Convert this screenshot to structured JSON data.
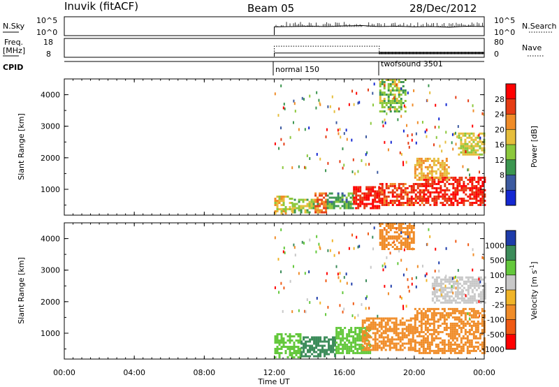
{
  "header": {
    "station": "Inuvik (fitACF)",
    "beam": "Beam 05",
    "date": "28/Dec/2012"
  },
  "noise_panel": {
    "left_label": "N.Sky",
    "left_ticks": [
      "10^5",
      "10^0"
    ],
    "right_ticks": [
      "10^5",
      "10^0"
    ],
    "right_label": "N.Search"
  },
  "freq_panel": {
    "left_label_1": "Freq.",
    "left_label_2": "[MHz]",
    "left_ticks": [
      "18",
      "8"
    ],
    "right_ticks": [
      "80",
      "0"
    ],
    "right_label": "Nave"
  },
  "cpid_panel": {
    "label": "CPID",
    "programs": [
      {
        "name": "normal 150",
        "start_hour": 12,
        "end_hour": 18
      },
      {
        "name": "twofsound 3501",
        "start_hour": 18,
        "end_hour": 24
      }
    ]
  },
  "x_axis": {
    "label": "Time UT",
    "ticks": [
      "00:00",
      "04:00",
      "08:00",
      "12:00",
      "16:00",
      "20:00",
      "00:00"
    ],
    "range_hours": [
      0,
      24
    ]
  },
  "power_panel": {
    "ylabel": "Slant Range [km]",
    "yticks": [
      "1000",
      "2000",
      "3000",
      "4000"
    ],
    "ylim_km": [
      180,
      4500
    ],
    "colorbar_label": "Power [dB]",
    "colorbar_ticks": [
      "4",
      "8",
      "12",
      "16",
      "20",
      "24",
      "28"
    ]
  },
  "velocity_panel": {
    "ylabel": "Slant Range [km]",
    "yticks": [
      "1000",
      "2000",
      "3000",
      "4000"
    ],
    "ylim_km": [
      180,
      4500
    ],
    "colorbar_label": "Velocity [m s",
    "colorbar_label_sup": "-1",
    "colorbar_label_end": "]",
    "colorbar_ticks": [
      "1000",
      "500",
      "100",
      "25",
      "-25",
      "-100",
      "-500",
      "-1000"
    ]
  },
  "chart_data": [
    {
      "type": "line",
      "title": "N.Sky / N.Search",
      "x_hours": [
        12,
        13,
        14,
        15,
        16,
        17,
        18,
        19,
        20,
        21,
        22,
        23,
        24
      ],
      "log10_noise": [
        2.4,
        2.5,
        2.6,
        2.5,
        2.7,
        2.8,
        2.5,
        2.6,
        2.4,
        2.5,
        2.3,
        2.6,
        2.5
      ]
    },
    {
      "type": "line",
      "title": "Freq. / Nave",
      "series": [
        {
          "name": "Freq.",
          "x_hours": [
            12,
            18,
            24
          ],
          "values_mhz": [
            11,
            11,
            11
          ]
        },
        {
          "name": "Nave",
          "x_hours": [
            12,
            18,
            24
          ],
          "values": [
            70,
            16,
            16
          ]
        }
      ]
    },
    {
      "type": "heatmap",
      "title": "Power [dB]",
      "x_range_hours": [
        12,
        24
      ],
      "y_range_km": [
        180,
        4500
      ],
      "colorscale": [
        {
          "value": 4,
          "color": "#1428d2"
        },
        {
          "value": 8,
          "color": "#3c5aa0"
        },
        {
          "value": 12,
          "color": "#3c9650"
        },
        {
          "value": 16,
          "color": "#8cc83c"
        },
        {
          "value": 20,
          "color": "#e6be3c"
        },
        {
          "value": 24,
          "color": "#f08c28"
        },
        {
          "value": 28,
          "color": "#e63c14"
        },
        {
          "value": 32,
          "color": "#ff0000"
        }
      ],
      "regions": [
        {
          "t0": 12.0,
          "t1": 13.0,
          "r0": 250,
          "r1": 800,
          "value": 20
        },
        {
          "t0": 13.0,
          "t1": 14.5,
          "r0": 300,
          "r1": 700,
          "value": 16
        },
        {
          "t0": 14.3,
          "t1": 15.0,
          "r0": 300,
          "r1": 900,
          "value": 26
        },
        {
          "t0": 15.0,
          "t1": 16.5,
          "r0": 400,
          "r1": 900,
          "value": 12
        },
        {
          "t0": 16.5,
          "t1": 18.0,
          "r0": 400,
          "r1": 1100,
          "value": 30
        },
        {
          "t0": 18.0,
          "t1": 20.5,
          "r0": 500,
          "r1": 1200,
          "value": 28
        },
        {
          "t0": 20.5,
          "t1": 24.0,
          "r0": 500,
          "r1": 1400,
          "value": 30
        },
        {
          "t0": 20.0,
          "t1": 22.0,
          "r0": 1300,
          "r1": 2000,
          "value": 22
        },
        {
          "t0": 22.5,
          "t1": 24.0,
          "r0": 2100,
          "r1": 2800,
          "value": 18
        },
        {
          "t0": 18.0,
          "t1": 19.5,
          "r0": 3500,
          "r1": 4500,
          "value": 16
        }
      ]
    },
    {
      "type": "heatmap",
      "title": "Velocity [m s-1]",
      "x_range_hours": [
        12,
        24
      ],
      "y_range_km": [
        180,
        4500
      ],
      "colorscale": [
        {
          "value": 1000,
          "color": "#1e3caa"
        },
        {
          "value": 500,
          "color": "#3c8c5a"
        },
        {
          "value": 100,
          "color": "#64c83c"
        },
        {
          "value": 25,
          "color": "#c8c8c8"
        },
        {
          "value": -25,
          "color": "#f0b428"
        },
        {
          "value": -100,
          "color": "#f08c28"
        },
        {
          "value": -500,
          "color": "#f05a14"
        },
        {
          "value": -1000,
          "color": "#ff0000"
        }
      ],
      "regions": [
        {
          "t0": 12.0,
          "t1": 13.5,
          "r0": 250,
          "r1": 1000,
          "value": 100
        },
        {
          "t0": 13.5,
          "t1": 15.5,
          "r0": 300,
          "r1": 900,
          "value": 500
        },
        {
          "t0": 15.5,
          "t1": 17.5,
          "r0": 400,
          "r1": 1200,
          "value": 100
        },
        {
          "t0": 17.0,
          "t1": 20.0,
          "r0": 500,
          "r1": 1500,
          "value": -100
        },
        {
          "t0": 20.0,
          "t1": 24.0,
          "r0": 400,
          "r1": 1800,
          "value": -100
        },
        {
          "t0": 21.0,
          "t1": 24.0,
          "r0": 2000,
          "r1": 2800,
          "value": 25
        },
        {
          "t0": 18.0,
          "t1": 20.0,
          "r0": 3700,
          "r1": 4500,
          "value": -100
        }
      ]
    }
  ]
}
